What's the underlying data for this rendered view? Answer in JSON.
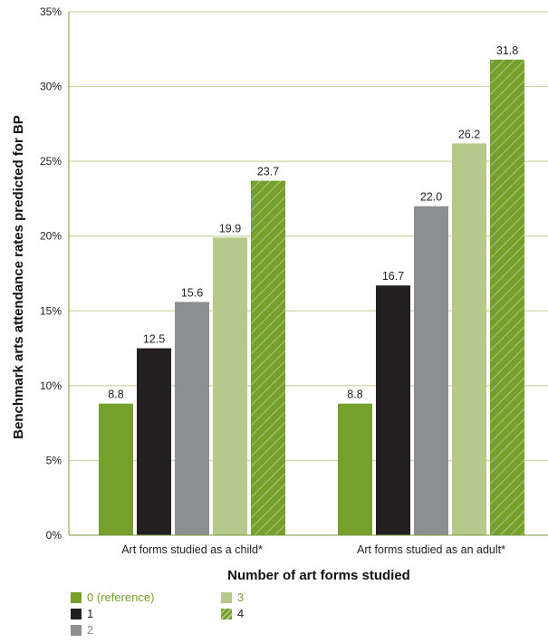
{
  "chart_data": {
    "type": "bar",
    "categories": [
      "Art forms studied as a child*",
      "Art forms studied as an adult*"
    ],
    "series": [
      {
        "name": "0 (reference)",
        "values": [
          8.8,
          8.8
        ],
        "color": "#76a02c",
        "pattern": "solid",
        "label_color": "#76a02c"
      },
      {
        "name": "1",
        "values": [
          12.5,
          16.7
        ],
        "color": "#231f20",
        "pattern": "solid",
        "label_color": "#231f20"
      },
      {
        "name": "2",
        "values": [
          15.6,
          22.0
        ],
        "color": "#8d8e91",
        "pattern": "solid",
        "label_color": "#8d8e91"
      },
      {
        "name": "3",
        "values": [
          19.9,
          26.2
        ],
        "color": "#b6c98c",
        "pattern": "solid",
        "label_color": "#76a02c"
      },
      {
        "name": "4",
        "values": [
          23.7,
          31.8
        ],
        "color": "#76a02c",
        "pattern": "hatched",
        "label_color": "#231f20"
      }
    ],
    "value_labels": [
      [
        "8.8",
        "12.5",
        "15.6",
        "19.9",
        "23.7"
      ],
      [
        "8.8",
        "16.7",
        "22.0",
        "26.2",
        "31.8"
      ]
    ],
    "ylim": [
      0,
      35
    ],
    "yticks": [
      0,
      5,
      10,
      15,
      20,
      25,
      30,
      35
    ],
    "ytick_labels": [
      "0%",
      "5%",
      "10%",
      "15%",
      "20%",
      "25%",
      "30%",
      "35%"
    ],
    "xlabel": "Number of art forms studied",
    "ylabel": "Benchmark arts attendance rates predicted for BP",
    "grid": true,
    "grid_color": "#c9d9a6",
    "legend_position": "bottom-left"
  }
}
